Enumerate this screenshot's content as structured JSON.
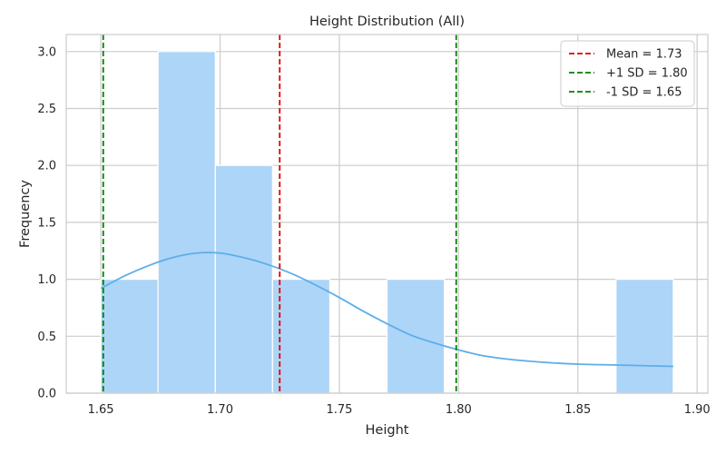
{
  "chart_data": {
    "type": "histogram",
    "title": "Height Distribution (All)",
    "xlabel": "Height",
    "ylabel": "Frequency",
    "xlim": [
      1.6355,
      1.9045
    ],
    "ylim": [
      0,
      3.15
    ],
    "x_ticks": [
      1.65,
      1.7,
      1.75,
      1.8,
      1.85,
      1.9
    ],
    "x_tick_labels": [
      "1.65",
      "1.70",
      "1.75",
      "1.80",
      "1.85",
      "1.90"
    ],
    "y_ticks": [
      0,
      0.5,
      1.0,
      1.5,
      2.0,
      2.5,
      3.0
    ],
    "y_tick_labels": [
      "0.0",
      "0.5",
      "1.0",
      "1.5",
      "2.0",
      "2.5",
      "3.0"
    ],
    "grid": true,
    "legend_position": "top-right",
    "bins": [
      {
        "x0": 1.65,
        "x1": 1.674,
        "count": 1
      },
      {
        "x0": 1.674,
        "x1": 1.698,
        "count": 3
      },
      {
        "x0": 1.698,
        "x1": 1.722,
        "count": 2
      },
      {
        "x0": 1.722,
        "x1": 1.746,
        "count": 1
      },
      {
        "x0": 1.746,
        "x1": 1.77,
        "count": 0
      },
      {
        "x0": 1.77,
        "x1": 1.794,
        "count": 1
      },
      {
        "x0": 1.794,
        "x1": 1.818,
        "count": 0
      },
      {
        "x0": 1.818,
        "x1": 1.842,
        "count": 0
      },
      {
        "x0": 1.842,
        "x1": 1.866,
        "count": 0
      },
      {
        "x0": 1.866,
        "x1": 1.89,
        "count": 1
      }
    ],
    "kde": {
      "x": [
        1.65,
        1.66,
        1.67,
        1.68,
        1.69,
        1.7,
        1.71,
        1.72,
        1.73,
        1.74,
        1.75,
        1.76,
        1.77,
        1.78,
        1.79,
        1.8,
        1.81,
        1.82,
        1.83,
        1.84,
        1.85,
        1.86,
        1.87,
        1.88,
        1.89
      ],
      "y": [
        0.92,
        1.03,
        1.12,
        1.19,
        1.23,
        1.23,
        1.19,
        1.13,
        1.05,
        0.95,
        0.84,
        0.72,
        0.61,
        0.51,
        0.44,
        0.38,
        0.33,
        0.3,
        0.28,
        0.265,
        0.255,
        0.25,
        0.245,
        0.24,
        0.235
      ]
    },
    "vlines": [
      {
        "name": "Mean = 1.73",
        "x": 1.725,
        "color": "#e00000"
      },
      {
        "name": "+1 SD = 1.80",
        "x": 1.799,
        "color": "#008000"
      },
      {
        "name": "-1 SD = 1.65",
        "x": 1.651,
        "color": "#008000"
      }
    ],
    "colors": {
      "bar_fill": "#add5f7",
      "kde_line": "#5daee8",
      "grid": "#cccccc",
      "axis": "#cccccc"
    }
  }
}
